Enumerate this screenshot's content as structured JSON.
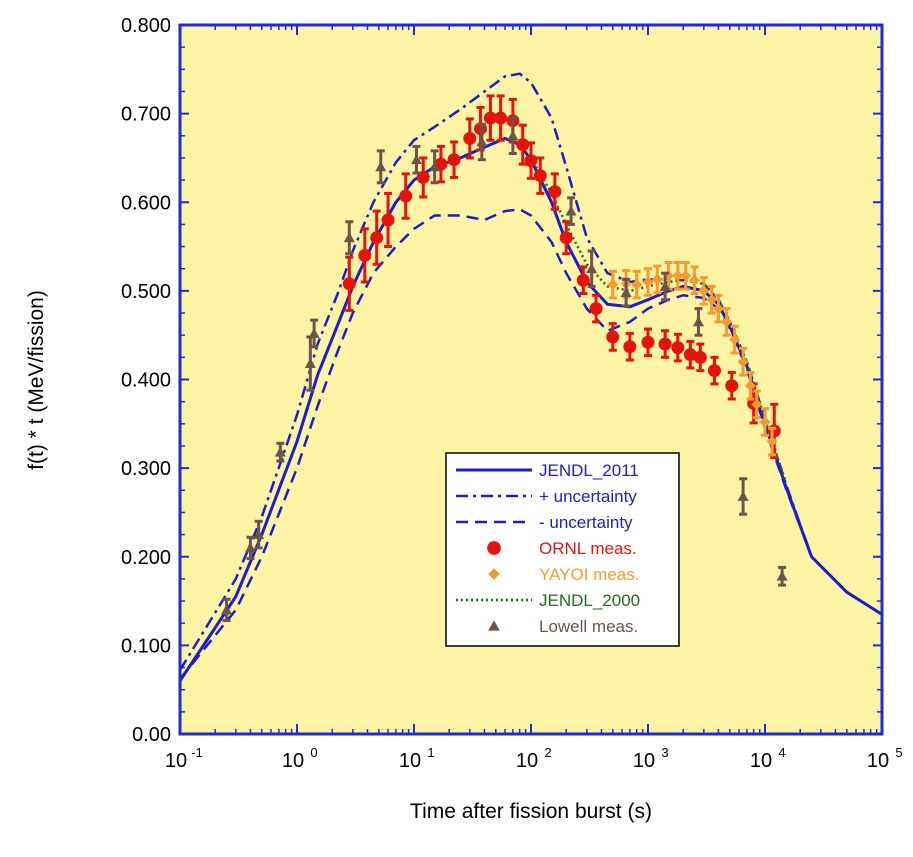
{
  "chart_data": {
    "type": "line",
    "xlabel": "Time after fission burst (s)",
    "ylabel": "f(t) * t (MeV/fission)",
    "xscale": "log",
    "xlim": [
      0.1,
      100000
    ],
    "ylim": [
      0,
      0.8
    ],
    "grid": false,
    "legend_position": "center-right",
    "background_color": "#FCF3A5",
    "frame_color": "#1F2BD6",
    "x_ticks": [
      {
        "base": "10",
        "exp": "-1",
        "value": 0.1
      },
      {
        "base": "10",
        "exp": "0",
        "value": 1
      },
      {
        "base": "10",
        "exp": "1",
        "value": 10
      },
      {
        "base": "10",
        "exp": "2",
        "value": 100
      },
      {
        "base": "10",
        "exp": "3",
        "value": 1000
      },
      {
        "base": "10",
        "exp": "4",
        "value": 10000
      },
      {
        "base": "10",
        "exp": "5",
        "value": 100000
      }
    ],
    "y_ticks": [
      {
        "label": "0.00",
        "value": 0
      },
      {
        "label": "0.100",
        "value": 0.1
      },
      {
        "label": "0.200",
        "value": 0.2
      },
      {
        "label": "0.300",
        "value": 0.3
      },
      {
        "label": "0.400",
        "value": 0.4
      },
      {
        "label": "0.500",
        "value": 0.5
      },
      {
        "label": "0.600",
        "value": 0.6
      },
      {
        "label": "0.700",
        "value": 0.7
      },
      {
        "label": "0.800",
        "value": 0.8
      }
    ],
    "series": [
      {
        "name": "JENDL_2011",
        "kind": "line",
        "style": "solid",
        "color": "#1A1FC8",
        "x": [
          0.1,
          0.3,
          0.5,
          1,
          1.5,
          2.2,
          3,
          4.5,
          7,
          10,
          15,
          25,
          40,
          60,
          80,
          100,
          150,
          200,
          300,
          450,
          700,
          1000,
          1500,
          2000,
          3000,
          4000,
          5000,
          7000,
          10000,
          15000,
          25000,
          50000,
          100000
        ],
        "y": [
          0.06,
          0.155,
          0.225,
          0.33,
          0.405,
          0.46,
          0.505,
          0.555,
          0.6,
          0.625,
          0.64,
          0.65,
          0.662,
          0.672,
          0.665,
          0.648,
          0.6,
          0.555,
          0.51,
          0.485,
          0.482,
          0.49,
          0.5,
          0.505,
          0.5,
          0.485,
          0.46,
          0.415,
          0.35,
          0.28,
          0.2,
          0.16,
          0.135
        ]
      },
      {
        "name": "+ uncertainty",
        "kind": "line",
        "style": "dashdot",
        "color": "#1A1FC8",
        "x": [
          0.1,
          0.3,
          0.5,
          1,
          1.5,
          2.2,
          3,
          4.5,
          7,
          10,
          15,
          25,
          40,
          60,
          80,
          100,
          150,
          200,
          300,
          450,
          700,
          1000,
          1500,
          2000,
          3000,
          4000,
          5000,
          7000,
          10000,
          15000,
          25000,
          50000,
          100000
        ],
        "y": [
          0.072,
          0.175,
          0.245,
          0.36,
          0.44,
          0.495,
          0.545,
          0.6,
          0.645,
          0.67,
          0.685,
          0.705,
          0.725,
          0.742,
          0.745,
          0.735,
          0.695,
          0.64,
          0.56,
          0.52,
          0.51,
          0.513,
          0.513,
          0.512,
          0.508,
          0.49,
          0.465,
          0.42,
          0.355,
          0.283,
          0.2,
          0.16,
          0.135
        ]
      },
      {
        "name": "- uncertainty",
        "kind": "line",
        "style": "longdash",
        "color": "#1A1FC8",
        "x": [
          0.1,
          0.3,
          0.5,
          1,
          1.5,
          2.2,
          3,
          4.5,
          7,
          10,
          15,
          25,
          40,
          60,
          80,
          100,
          150,
          200,
          300,
          450,
          700,
          1000,
          1500,
          2000,
          3000,
          4000,
          5000,
          7000,
          10000,
          15000,
          25000,
          50000,
          100000
        ],
        "y": [
          0.062,
          0.14,
          0.2,
          0.3,
          0.37,
          0.43,
          0.475,
          0.52,
          0.55,
          0.57,
          0.585,
          0.585,
          0.58,
          0.59,
          0.592,
          0.585,
          0.555,
          0.52,
          0.48,
          0.455,
          0.465,
          0.48,
          0.49,
          0.495,
          0.492,
          0.48,
          0.458,
          0.412,
          0.345,
          0.278,
          0.2,
          0.16,
          0.135
        ]
      },
      {
        "name": "JENDL_2000",
        "kind": "line",
        "style": "dotted",
        "color": "#1E6E1E",
        "x": [
          100,
          150,
          200,
          300,
          450,
          700,
          1000,
          1500,
          2000,
          3000,
          4000,
          5000,
          7000,
          10000,
          15000
        ],
        "y": [
          0.65,
          0.61,
          0.575,
          0.53,
          0.505,
          0.5,
          0.505,
          0.51,
          0.512,
          0.508,
          0.49,
          0.465,
          0.42,
          0.355,
          0.285
        ]
      },
      {
        "name": "ORNL meas.",
        "kind": "points",
        "marker": "circle",
        "color": "#E3140E",
        "x": [
          2.8,
          3.8,
          4.8,
          6,
          8.5,
          12,
          17,
          22,
          30,
          37,
          45,
          55,
          70,
          85,
          100,
          120,
          160,
          200,
          280,
          360,
          500,
          700,
          1000,
          1400,
          1800,
          2300,
          2800,
          3700,
          5200,
          8000,
          12000
        ],
        "y": [
          0.508,
          0.54,
          0.56,
          0.58,
          0.607,
          0.628,
          0.643,
          0.648,
          0.672,
          0.683,
          0.695,
          0.695,
          0.692,
          0.665,
          0.647,
          0.63,
          0.612,
          0.56,
          0.512,
          0.48,
          0.448,
          0.437,
          0.442,
          0.44,
          0.436,
          0.428,
          0.425,
          0.41,
          0.393,
          0.373,
          0.342
        ],
        "err": [
          0.03,
          0.03,
          0.03,
          0.03,
          0.025,
          0.022,
          0.02,
          0.02,
          0.022,
          0.024,
          0.025,
          0.025,
          0.024,
          0.022,
          0.02,
          0.02,
          0.02,
          0.018,
          0.015,
          0.015,
          0.015,
          0.015,
          0.015,
          0.015,
          0.015,
          0.015,
          0.015,
          0.015,
          0.015,
          0.022,
          0.03
        ]
      },
      {
        "name": "YAYOI meas.",
        "kind": "points",
        "marker": "diamond",
        "color": "#F59A2E",
        "x": [
          500,
          650,
          800,
          1000,
          1200,
          1500,
          1800,
          2100,
          2500,
          3000,
          3500,
          4000,
          4700,
          5500,
          6500,
          7500,
          8500,
          10000,
          11500
        ],
        "y": [
          0.507,
          0.508,
          0.507,
          0.51,
          0.513,
          0.517,
          0.517,
          0.517,
          0.512,
          0.5,
          0.49,
          0.48,
          0.465,
          0.445,
          0.42,
          0.393,
          0.372,
          0.352,
          0.33
        ],
        "err": [
          0.015,
          0.015,
          0.015,
          0.015,
          0.015,
          0.015,
          0.015,
          0.015,
          0.015,
          0.015,
          0.015,
          0.015,
          0.015,
          0.015,
          0.015,
          0.015,
          0.015,
          0.015,
          0.015
        ]
      },
      {
        "name": "Lowell meas.",
        "kind": "points",
        "marker": "triangle",
        "color": "#6B554B",
        "x": [
          0.25,
          0.4,
          0.47,
          0.72,
          1.3,
          1.4,
          2.8,
          5.2,
          10.5,
          15,
          38,
          70,
          220,
          330,
          650,
          1400,
          2700,
          6500,
          14000
        ],
        "y": [
          0.14,
          0.21,
          0.225,
          0.318,
          0.418,
          0.452,
          0.56,
          0.64,
          0.648,
          0.64,
          0.668,
          0.675,
          0.59,
          0.525,
          0.498,
          0.505,
          0.465,
          0.268,
          0.178
        ],
        "err": [
          0.012,
          0.012,
          0.015,
          0.01,
          0.03,
          0.015,
          0.018,
          0.018,
          0.015,
          0.018,
          0.02,
          0.02,
          0.015,
          0.02,
          0.015,
          0.015,
          0.015,
          0.02,
          0.01
        ]
      }
    ],
    "legend_entries": [
      {
        "label": "JENDL_2011",
        "color": "#1A1FC8",
        "symbol": "solid"
      },
      {
        "label": "+ uncertainty",
        "color": "#1A1FC8",
        "symbol": "dashdot"
      },
      {
        "label": "- uncertainty",
        "color": "#1A1FC8",
        "symbol": "longdash"
      },
      {
        "label": "ORNL meas.",
        "color": "#E3140E",
        "symbol": "circle"
      },
      {
        "label": "YAYOI meas.",
        "color": "#F59A2E",
        "symbol": "diamond"
      },
      {
        "label": "JENDL_2000",
        "color": "#1E6E1E",
        "symbol": "dotted"
      },
      {
        "label": "Lowell meas.",
        "color": "#6B554B",
        "symbol": "triangle"
      }
    ]
  }
}
